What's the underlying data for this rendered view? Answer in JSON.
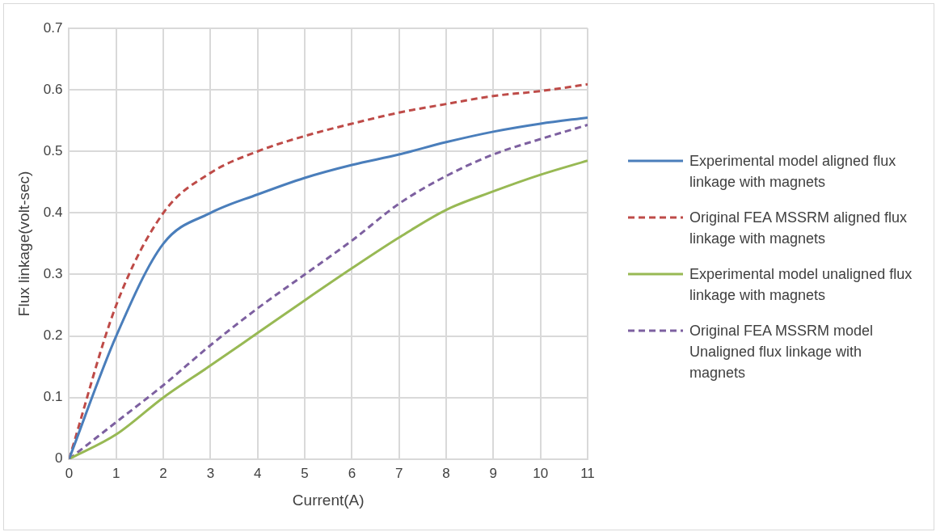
{
  "chart_data": {
    "type": "line",
    "xlabel": "Current(A)",
    "ylabel": "Flux linkage(volt-sec)",
    "x": [
      0,
      1,
      2,
      3,
      4,
      5,
      6,
      7,
      8,
      9,
      10,
      11
    ],
    "xlim": [
      0,
      11
    ],
    "xticks": [
      0,
      1,
      2,
      3,
      4,
      5,
      6,
      7,
      8,
      9,
      10,
      11
    ],
    "ylim": [
      0,
      0.7
    ],
    "yticks": [
      0,
      0.1,
      0.2,
      0.3,
      0.4,
      0.5,
      0.6,
      0.7
    ],
    "grid": true,
    "legend": "right",
    "marker": "none",
    "series": [
      {
        "name": "Experimental model aligned flux linkage with magnets",
        "color": "#4a7ebb",
        "line_style": "solid",
        "values": [
          0,
          0.2,
          0.35,
          0.4,
          0.43,
          0.457,
          0.478,
          0.495,
          0.515,
          0.532,
          0.545,
          0.555
        ]
      },
      {
        "name": "Original FEA MSSRM  aligned flux linkage with magnets",
        "color": "#be4b48",
        "line_style": "dashed",
        "values": [
          0,
          0.25,
          0.4,
          0.465,
          0.5,
          0.525,
          0.545,
          0.563,
          0.577,
          0.59,
          0.598,
          0.609
        ]
      },
      {
        "name": "Experimental model unaligned flux linkage with magnets",
        "color": "#98b954",
        "line_style": "solid",
        "values": [
          0,
          0.04,
          0.1,
          0.152,
          0.205,
          0.258,
          0.31,
          0.36,
          0.405,
          0.435,
          0.462,
          0.485
        ]
      },
      {
        "name": "Original FEA MSSRM model Unaligned flux linkage with magnets",
        "color": "#7d60a0",
        "line_style": "dashed",
        "values": [
          0,
          0.06,
          0.12,
          0.185,
          0.245,
          0.3,
          0.355,
          0.415,
          0.46,
          0.495,
          0.52,
          0.543
        ]
      }
    ]
  }
}
